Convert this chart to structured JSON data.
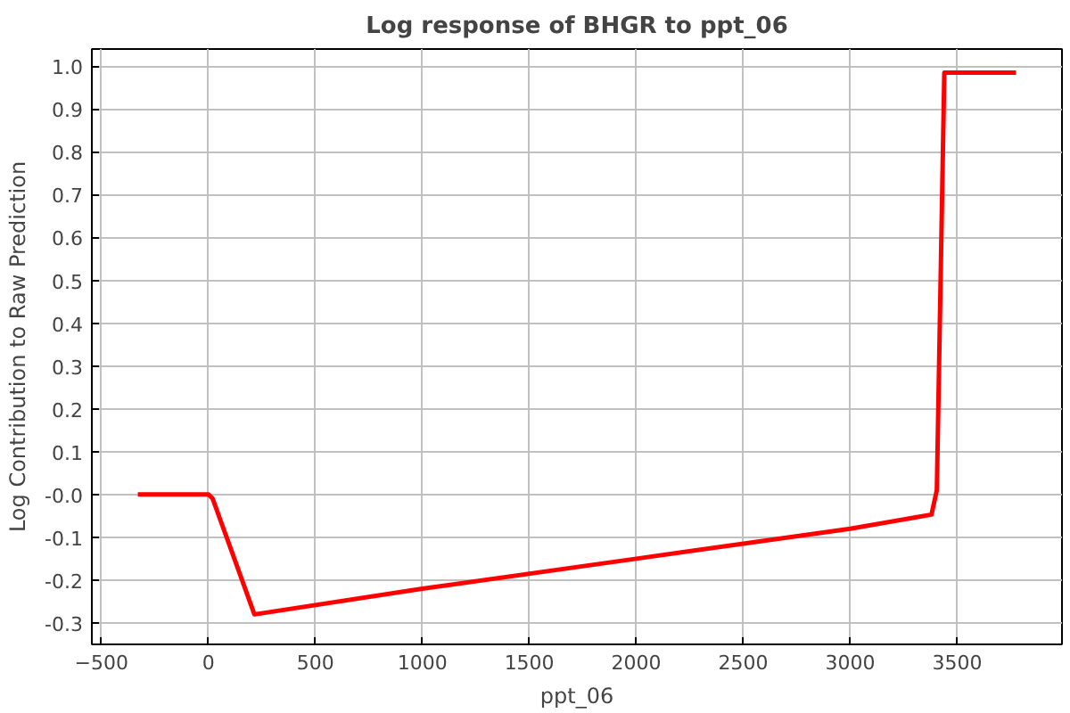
{
  "chart_data": {
    "type": "line",
    "title": "Log response of BHGR to ppt_06",
    "xlabel": "ppt_06",
    "ylabel": "Log Contribution to Raw Prediction",
    "x": [
      -330,
      0,
      20,
      215,
      1000,
      2000,
      3000,
      3380,
      3405,
      3440,
      3775
    ],
    "series": [
      {
        "color": "#ff0000",
        "values": [
          0,
          0,
          -0.01,
          -0.28,
          -0.22,
          -0.15,
          -0.08,
          -0.047,
          0.01,
          0.985,
          0.985
        ]
      }
    ],
    "xlim": [
      -545,
      3990
    ],
    "ylim": [
      -0.35,
      1.04
    ],
    "xticks": [
      -500,
      0,
      500,
      1000,
      1500,
      2000,
      2500,
      3000,
      3500
    ],
    "yticks": [
      {
        "value": -0.3,
        "label": "-0.3"
      },
      {
        "value": -0.2,
        "label": "-0.2"
      },
      {
        "value": -0.1,
        "label": "-0.1"
      },
      {
        "value": 0,
        "label": "-0.0"
      },
      {
        "value": 0.1,
        "label": "0.1"
      },
      {
        "value": 0.2,
        "label": "0.2"
      },
      {
        "value": 0.3,
        "label": "0.3"
      },
      {
        "value": 0.4,
        "label": "0.4"
      },
      {
        "value": 0.5,
        "label": "0.5"
      },
      {
        "value": 0.6,
        "label": "0.6"
      },
      {
        "value": 0.7,
        "label": "0.7"
      },
      {
        "value": 0.8,
        "label": "0.8"
      },
      {
        "value": 0.9,
        "label": "0.9"
      },
      {
        "value": 1.0,
        "label": "1.0"
      }
    ],
    "grid": true,
    "line_style": "solid"
  }
}
